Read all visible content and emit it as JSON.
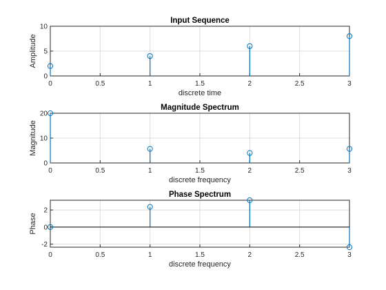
{
  "chart_data": [
    {
      "type": "stem",
      "title": "Input Sequence",
      "xlabel": "discrete time",
      "ylabel": "Amplitude",
      "x": [
        0,
        1,
        2,
        3
      ],
      "values": [
        2,
        4,
        6,
        8
      ],
      "xlim": [
        0,
        3
      ],
      "ylim": [
        0,
        10
      ],
      "xticks": [
        "0",
        "0.5",
        "1",
        "1.5",
        "2",
        "2.5",
        "3"
      ],
      "yticks": [
        "0",
        "5",
        "10"
      ],
      "grid": true,
      "baseline": false,
      "color": "#0072bd"
    },
    {
      "type": "stem",
      "title": "Magnitude Spectrum",
      "xlabel": "discrete frequency",
      "ylabel": "Magnitude",
      "x": [
        0,
        1,
        2,
        3
      ],
      "values": [
        20,
        5.66,
        4,
        5.66
      ],
      "xlim": [
        0,
        3
      ],
      "ylim": [
        0,
        20
      ],
      "xticks": [
        "0",
        "0.5",
        "1",
        "1.5",
        "2",
        "2.5",
        "3"
      ],
      "yticks": [
        "0",
        "10",
        "20"
      ],
      "grid": true,
      "baseline": false,
      "color": "#0072bd"
    },
    {
      "type": "stem",
      "title": "Phase Spectrum",
      "xlabel": "discrete frequency",
      "ylabel": "Phase",
      "x": [
        0,
        1,
        2,
        3
      ],
      "values": [
        0,
        2.36,
        3.14,
        -2.36
      ],
      "xlim": [
        0,
        3
      ],
      "ylim": [
        -2.36,
        3.14
      ],
      "xticks": [
        "0",
        "0.5",
        "1",
        "1.5",
        "2",
        "2.5",
        "3"
      ],
      "yticks": [
        "-2",
        "0",
        "2"
      ],
      "grid": true,
      "baseline": true,
      "color": "#0072bd"
    }
  ]
}
